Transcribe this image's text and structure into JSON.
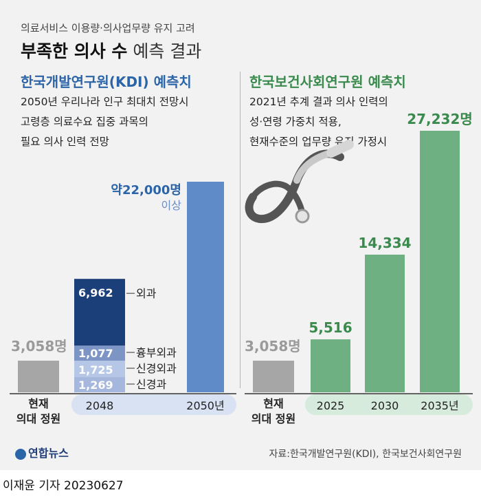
{
  "subtitle": "의료서비스 이용량·의사업무량 유지 고려",
  "title_bold": "부족한 의사 수",
  "title_light": "예측 결과",
  "left_panel": {
    "header": "한국개발연구원(KDI) 예측치",
    "desc": [
      "2050년 우리나라 인구 최대치 전망시",
      "고령층 의료수요 집중 과목의",
      "필요 의사 인력 전망"
    ]
  },
  "right_panel": {
    "header": "한국보건사회연구원 예측치",
    "desc": [
      "2021년 추계 결과 의사 인력의",
      "성·연령 가중치 적용,",
      "현재수준의 업무량 유지 가정시"
    ]
  },
  "current_label": [
    "현재",
    "의대 정원"
  ],
  "source": "자료:한국개발연구원(KDI), 한국보건사회연구원",
  "logo": "연합뉴스",
  "reporter": "이재윤 기자  20230627",
  "colors": {
    "gray_bar": "#a6a6a6",
    "kdi_dark": "#1b3f79",
    "kdi_mid": "#7d95c4",
    "kdi_light": "#a5b7dc",
    "kdi_lighter": "#b6c6e6",
    "kdi_2050": "#5f8bc9",
    "green": "#6fb082",
    "axis_band_left": "#d9e2f3",
    "axis_band_right": "#d6ebdc",
    "value_green": "#3a8a4e",
    "value_blue": "#2c64a8"
  },
  "chart_data": [
    {
      "type": "bar",
      "title": "한국개발연구원(KDI) 예측치",
      "categories": [
        "현재 의대 정원",
        "2048",
        "2050년"
      ],
      "current": {
        "value": 3058,
        "label": "3,058명"
      },
      "stack_2048": [
        {
          "name": "신경과",
          "value": 1269,
          "label": "1,269"
        },
        {
          "name": "신경외과",
          "value": 1725,
          "label": "1,725"
        },
        {
          "name": "흉부외과",
          "value": 1077,
          "label": "1,077"
        },
        {
          "name": "외과",
          "value": 6962,
          "label": "6,962"
        }
      ],
      "bar_2050": {
        "value": 22000,
        "label": "약22,000명",
        "note": "이상"
      }
    },
    {
      "type": "bar",
      "title": "한국보건사회연구원 예측치",
      "categories": [
        "현재 의대 정원",
        "2025",
        "2030",
        "2035년"
      ],
      "current": {
        "value": 3058,
        "label": "3,058명"
      },
      "values": [
        5516,
        14334,
        27232
      ],
      "labels": [
        "5,516",
        "14,334",
        "27,232명"
      ]
    }
  ]
}
